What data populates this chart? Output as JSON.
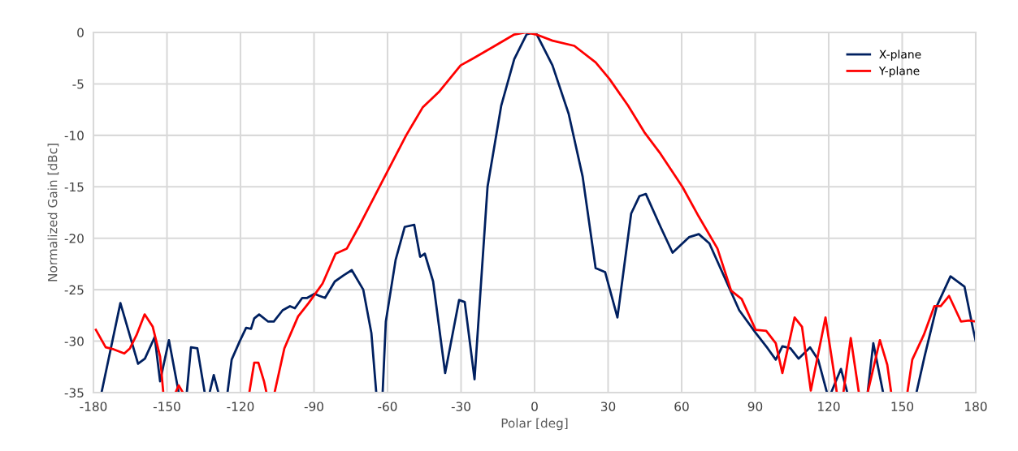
{
  "chart_data": {
    "type": "line",
    "xlabel": "Polar [deg]",
    "ylabel": "Normalized Gain [dBc]",
    "xlim": [
      -180,
      180
    ],
    "xticks": [
      -180,
      -150,
      -120,
      -90,
      -60,
      -30,
      0,
      30,
      60,
      90,
      120,
      150,
      180
    ],
    "ylim": [
      -35,
      0
    ],
    "yticks": [
      0,
      -5,
      -10,
      -15,
      -20,
      -25,
      -30,
      -35
    ],
    "grid": true,
    "legend": "top right",
    "marker": "none",
    "line_style": "solid",
    "series": [
      {
        "name": "X-plane",
        "color": "#002060",
        "x": [
          -176.7,
          -169,
          -161.8,
          -159,
          -155,
          -152.8,
          -149.2,
          -145.2,
          null,
          -141.9,
          -140.2,
          -137.6,
          -134.6,
          null,
          -132.6,
          -130.9,
          -129,
          null,
          -125.3,
          -123.6,
          -120.3,
          -117.7,
          -115.7,
          -114.4,
          -112.4,
          -108.7,
          -106.4,
          -102.8,
          -99.8,
          -97.8,
          -94.8,
          -92.8,
          -89.8,
          -87.8,
          -85.5,
          -81.5,
          -77.9,
          -74.6,
          -69.9,
          -66.6,
          -64.6,
          null,
          -62,
          -60.7,
          -56.7,
          -53,
          -49.1,
          -46.7,
          -44.8,
          -41.4,
          -36.5,
          -30.8,
          -28.5,
          -24.5,
          -19.2,
          -13.6,
          -8.3,
          -3.3,
          -0.3,
          0.7,
          7.3,
          13.9,
          19.6,
          24.9,
          28.8,
          33.8,
          39.4,
          42.8,
          45.4,
          51.4,
          56.3,
          63,
          67,
          71.3,
          79.2,
          83.5,
          90.2,
          95.1,
          98.4,
          101.1,
          104.4,
          107.7,
          112.4,
          115.7,
          119.3,
          null,
          121,
          125,
          127.6,
          null,
          135.9,
          138.2,
          142.2,
          null,
          155.8,
          159.1,
          164.1,
          169.7,
          175.4,
          178.7,
          180
        ],
        "values": [
          -35,
          -26.3,
          -32.2,
          -31.7,
          -29.6,
          -33.9,
          -29.9,
          -35,
          null,
          -35,
          -30.6,
          -30.7,
          -35,
          null,
          -35,
          -33.3,
          -35,
          null,
          -35,
          -31.8,
          -30,
          -28.7,
          -28.8,
          -27.8,
          -27.4,
          -28.1,
          -28.1,
          -27,
          -26.6,
          -26.8,
          -25.8,
          -25.8,
          -25.4,
          -25.6,
          -25.8,
          -24.2,
          -23.6,
          -23.1,
          -25,
          -29.2,
          -35,
          null,
          -35,
          -28.1,
          -22.1,
          -18.9,
          -18.7,
          -21.8,
          -21.5,
          -24.2,
          -33.1,
          -26,
          -26.2,
          -33.7,
          -15,
          -7.1,
          -2.6,
          -0.2,
          0,
          -0.1,
          -3.2,
          -7.9,
          -14,
          -22.9,
          -23.3,
          -27.7,
          -17.6,
          -15.9,
          -15.7,
          -18.9,
          -21.4,
          -19.9,
          -19.6,
          -20.5,
          -24.7,
          -27,
          -29.2,
          -30.7,
          -31.8,
          -30.5,
          -30.7,
          -31.7,
          -30.6,
          -31.8,
          -35,
          null,
          -35,
          -32.7,
          -35,
          null,
          -35,
          -30.2,
          -35,
          null,
          -35,
          -31.5,
          -26.6,
          -23.7,
          -24.7,
          -28.6,
          -30
        ]
      },
      {
        "name": "Y-plane",
        "color": "#ff0000",
        "x": [
          -179,
          -175,
          -171.7,
          -167.4,
          -165.1,
          -162.4,
          -159.1,
          -155.8,
          -152.8,
          -151.5,
          null,
          -146.5,
          -145.2,
          -143.5,
          null,
          -116.4,
          -114.4,
          -112.7,
          -110.4,
          -109.4,
          null,
          -106.1,
          -102.1,
          -96.5,
          -92.2,
          -86.5,
          -81.2,
          -76.6,
          -71.3,
          -63.3,
          -52.4,
          -45.7,
          -39.1,
          -30.2,
          -24.9,
          -16.9,
          -8.3,
          -3.6,
          0.7,
          7.3,
          16.2,
          24.9,
          30.5,
          38.1,
          44.8,
          51.4,
          60.3,
          67,
          74.6,
          80.2,
          84.5,
          90.2,
          94.5,
          98.4,
          101.1,
          106.1,
          109.1,
          112.7,
          118.7,
          122.3,
          123.3,
          null,
          126,
          129,
          132.3,
          null,
          135.9,
          140.9,
          143.9,
          145.5,
          null,
          152.1,
          154.1,
          158.8,
          163.1,
          165.7,
          169.1,
          174,
          177.3,
          180
        ],
        "values": [
          -28.9,
          -30.6,
          -30.8,
          -31.2,
          -30.7,
          -29.4,
          -27.4,
          -28.6,
          -31.5,
          -35,
          null,
          -35,
          -34.3,
          -35,
          null,
          -35,
          -32.1,
          -32.1,
          -33.9,
          -35,
          null,
          -35,
          -30.7,
          -27.6,
          -26.3,
          -24.4,
          -21.5,
          -21,
          -18.7,
          -15,
          -10,
          -7.3,
          -5.8,
          -3.2,
          -2.5,
          -1.4,
          -0.2,
          0,
          -0.2,
          -0.8,
          -1.3,
          -2.9,
          -4.5,
          -7.1,
          -9.7,
          -11.8,
          -15,
          -17.9,
          -21,
          -25.1,
          -25.9,
          -28.9,
          -29,
          -30.2,
          -33.1,
          -27.7,
          -28.6,
          -34.8,
          -27.7,
          -33.3,
          -35,
          null,
          -35,
          -29.7,
          -35,
          null,
          -35,
          -29.9,
          -32.3,
          -35,
          null,
          -35,
          -31.8,
          -29.4,
          -26.6,
          -26.6,
          -25.6,
          -28.1,
          -28,
          -28.1
        ]
      }
    ]
  }
}
